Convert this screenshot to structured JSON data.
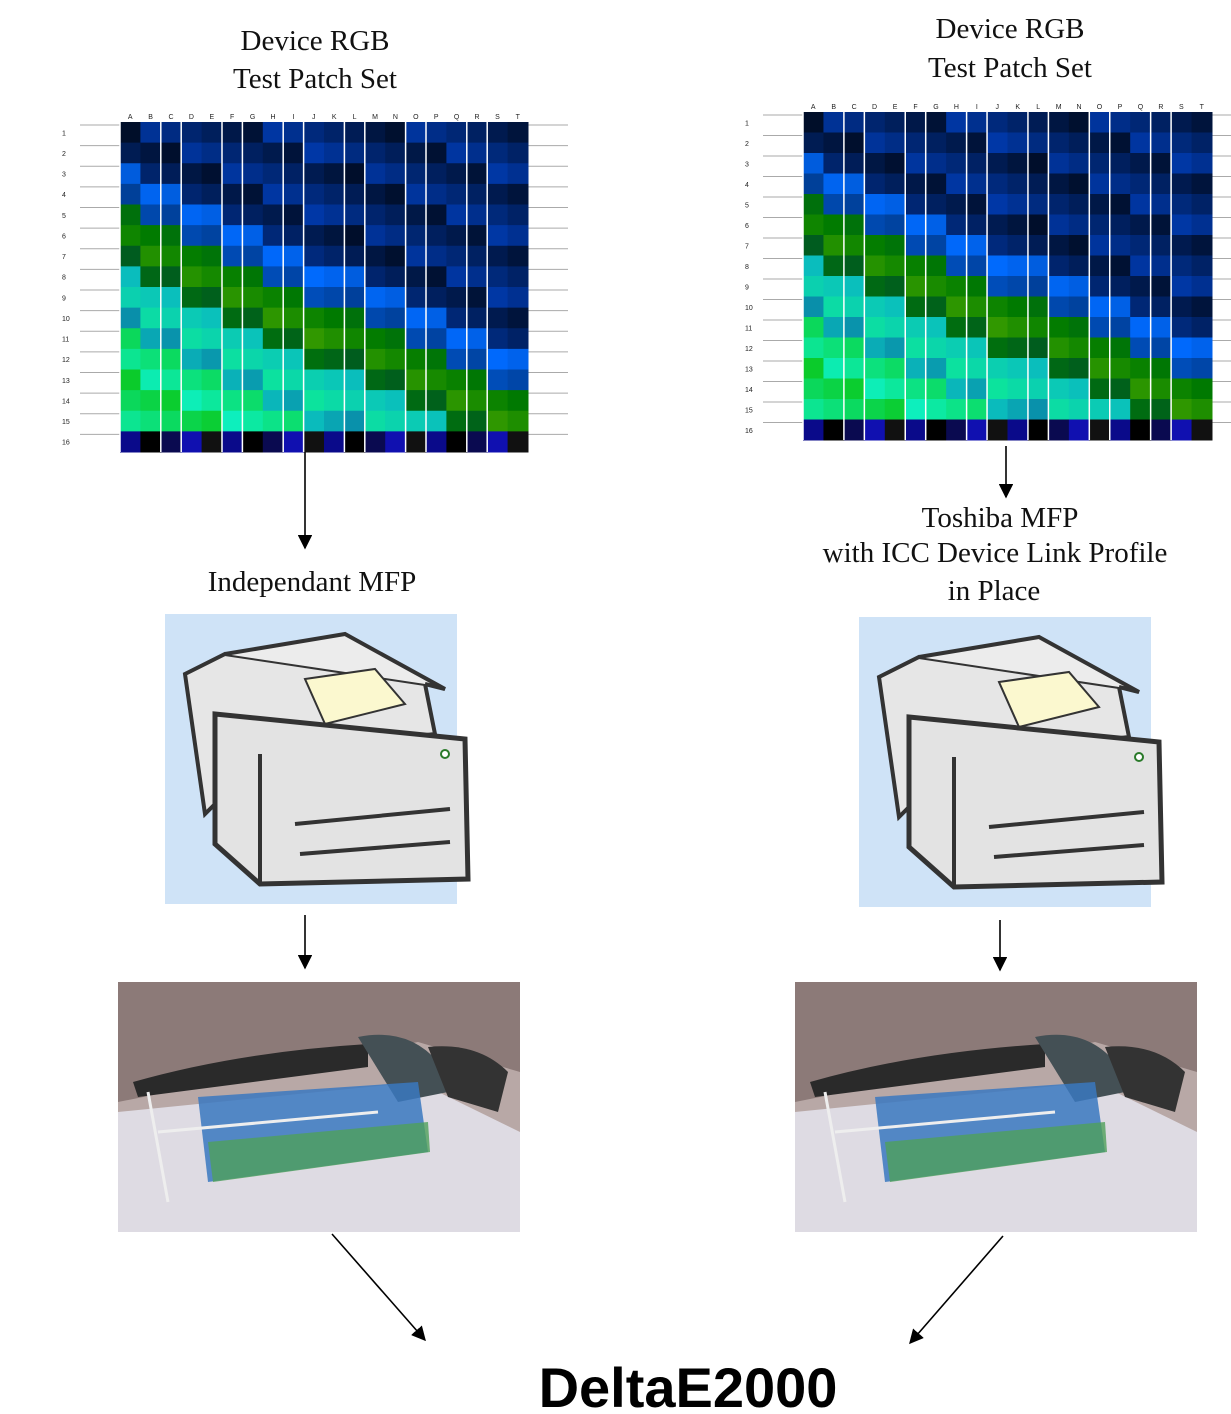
{
  "left": {
    "title": [
      "Device RGB",
      "Test Patch Set"
    ],
    "device": [
      "Independant MFP"
    ]
  },
  "right": {
    "title": [
      "Device RGB",
      "Test Patch Set"
    ],
    "device": [
      "Toshiba MFP",
      "with ICC Device Link Profile",
      "in Place"
    ]
  },
  "grid_columns": [
    "A",
    "B",
    "C",
    "D",
    "E",
    "F",
    "G",
    "H",
    "I",
    "J",
    "K",
    "L",
    "M",
    "N",
    "O",
    "P",
    "Q",
    "R",
    "S",
    "T"
  ],
  "grid_rows": [
    "1",
    "2",
    "3",
    "4",
    "5",
    "6",
    "7",
    "8",
    "9",
    "10",
    "11",
    "12",
    "13",
    "14",
    "15",
    "16"
  ],
  "result": "DeltaE2000"
}
